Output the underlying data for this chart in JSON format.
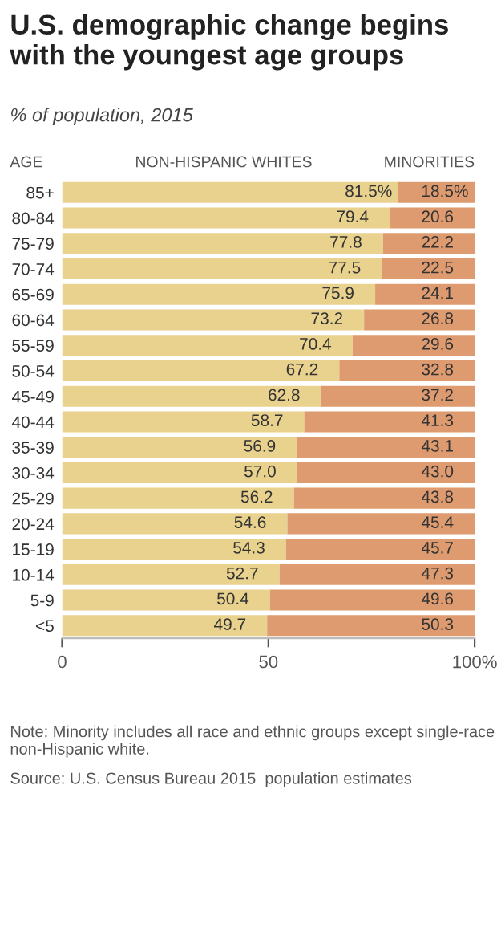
{
  "chart_data": {
    "type": "bar",
    "orientation": "horizontal",
    "stacked": true,
    "title": "U.S. demographic change begins with the youngest age groups",
    "subtitle": "% of population, 2015",
    "ylabel": "AGE",
    "categories": [
      "85+",
      "80-84",
      "75-79",
      "70-74",
      "65-69",
      "60-64",
      "55-59",
      "50-54",
      "45-49",
      "40-44",
      "35-39",
      "30-34",
      "25-29",
      "20-24",
      "15-19",
      "10-14",
      "5-9",
      "<5"
    ],
    "series": [
      {
        "name": "NON-HISPANIC WHITES",
        "color": "#e9d28e",
        "values": [
          81.5,
          79.4,
          77.8,
          77.5,
          75.9,
          73.2,
          70.4,
          67.2,
          62.8,
          58.7,
          56.9,
          57.0,
          56.2,
          54.6,
          54.3,
          52.7,
          50.4,
          49.7
        ],
        "value_labels": [
          "81.5%",
          "79.4",
          "77.8",
          "77.5",
          "75.9",
          "73.2",
          "70.4",
          "67.2",
          "62.8",
          "58.7",
          "56.9",
          "57.0",
          "56.2",
          "54.6",
          "54.3",
          "52.7",
          "50.4",
          "49.7"
        ]
      },
      {
        "name": "MINORITIES",
        "color": "#de9b6f",
        "values": [
          18.5,
          20.6,
          22.2,
          22.5,
          24.1,
          26.8,
          29.6,
          32.8,
          37.2,
          41.3,
          43.1,
          43.0,
          43.8,
          45.4,
          45.7,
          47.3,
          49.6,
          50.3
        ],
        "value_labels": [
          "18.5%",
          "20.6",
          "22.2",
          "22.5",
          "24.1",
          "26.8",
          "29.6",
          "32.8",
          "37.2",
          "41.3",
          "43.1",
          "43.0",
          "43.8",
          "45.4",
          "45.7",
          "47.3",
          "49.6",
          "50.3"
        ]
      }
    ],
    "xlim": [
      0,
      100
    ],
    "xticks": [
      0,
      50,
      {
        "value": 100,
        "label": "100%"
      }
    ],
    "annotations": [
      "Note: Minority includes all race and ethnic groups except single-race non-Hispanic white.",
      "Source: U.S. Census Bureau 2015  population estimates"
    ]
  }
}
